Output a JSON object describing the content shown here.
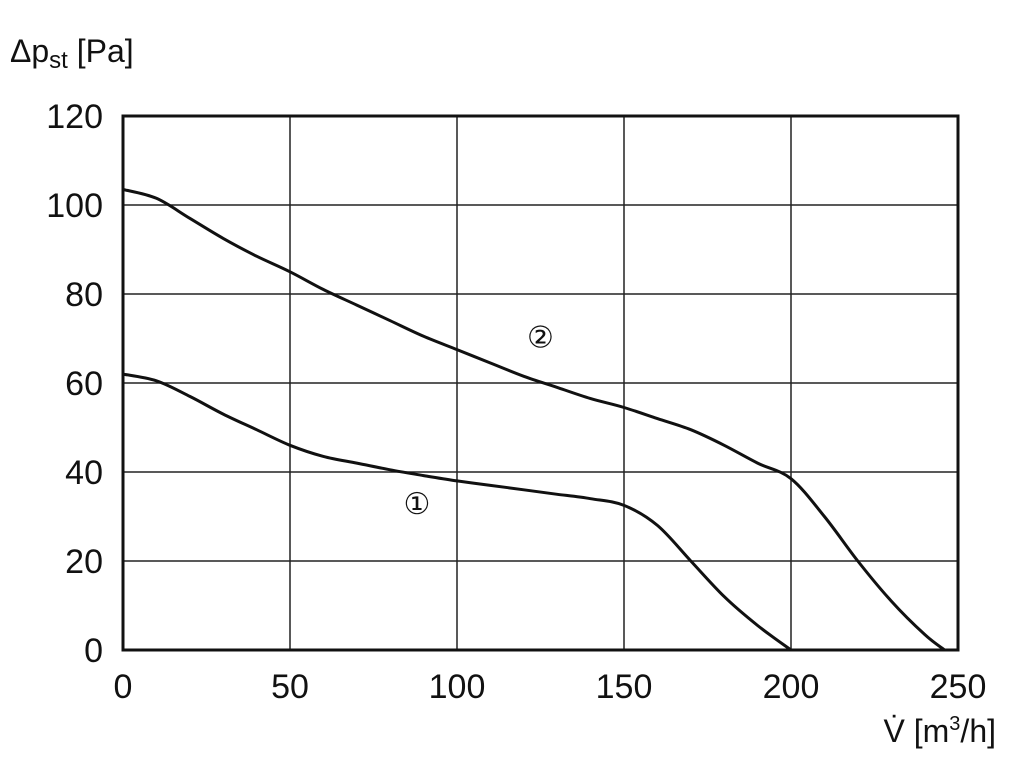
{
  "chart_data": {
    "type": "line",
    "ylabel": {
      "prefix": "Δp",
      "subscript": "st",
      "unit": " [Pa]"
    },
    "xlabel": {
      "symbol": "V̇",
      "unit_prefix": " [m",
      "superscript": "3",
      "unit_suffix": "/h]"
    },
    "xlim": [
      0,
      250
    ],
    "ylim": [
      0,
      120
    ],
    "x_ticks": [
      0,
      50,
      100,
      150,
      200,
      250
    ],
    "y_ticks": [
      0,
      20,
      40,
      60,
      80,
      100,
      120
    ],
    "grid": true,
    "colors": {
      "line": "#111111",
      "grid": "#222222",
      "background": "#ffffff"
    },
    "series": [
      {
        "marker": "①",
        "marker_at": [
          88,
          33
        ],
        "points": [
          [
            0,
            62
          ],
          [
            10,
            60.5
          ],
          [
            20,
            57
          ],
          [
            30,
            53
          ],
          [
            40,
            49.5
          ],
          [
            50,
            46
          ],
          [
            60,
            43.5
          ],
          [
            70,
            42
          ],
          [
            80,
            40.5
          ],
          [
            90,
            39.2
          ],
          [
            100,
            38
          ],
          [
            110,
            37
          ],
          [
            120,
            36
          ],
          [
            130,
            35
          ],
          [
            140,
            34
          ],
          [
            150,
            32.5
          ],
          [
            160,
            28
          ],
          [
            170,
            20
          ],
          [
            180,
            12
          ],
          [
            190,
            5.5
          ],
          [
            200,
            0
          ]
        ]
      },
      {
        "marker": "②",
        "marker_at": [
          125,
          70.5
        ],
        "points": [
          [
            0,
            103.5
          ],
          [
            10,
            101.5
          ],
          [
            20,
            97
          ],
          [
            30,
            92.5
          ],
          [
            40,
            88.5
          ],
          [
            50,
            85
          ],
          [
            60,
            81
          ],
          [
            70,
            77.5
          ],
          [
            80,
            74
          ],
          [
            90,
            70.5
          ],
          [
            100,
            67.5
          ],
          [
            110,
            64.5
          ],
          [
            120,
            61.5
          ],
          [
            130,
            59
          ],
          [
            140,
            56.5
          ],
          [
            150,
            54.5
          ],
          [
            160,
            52
          ],
          [
            170,
            49.5
          ],
          [
            180,
            46
          ],
          [
            190,
            42
          ],
          [
            200,
            38.5
          ],
          [
            210,
            30
          ],
          [
            220,
            20
          ],
          [
            230,
            11
          ],
          [
            240,
            3.5
          ],
          [
            246,
            0
          ]
        ]
      }
    ]
  }
}
